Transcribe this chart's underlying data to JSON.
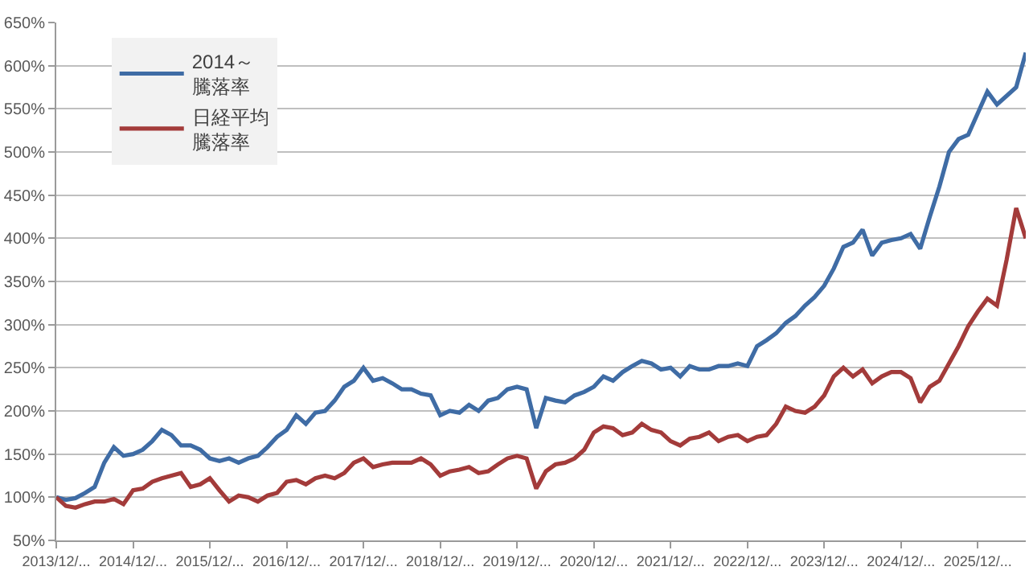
{
  "chart_data": {
    "type": "line",
    "categories": [
      "2013/12/...",
      null,
      null,
      null,
      null,
      null,
      null,
      null,
      "2014/12/...",
      null,
      null,
      null,
      null,
      null,
      null,
      null,
      "2015/12/...",
      null,
      null,
      null,
      null,
      null,
      null,
      null,
      "2016/12/...",
      null,
      null,
      null,
      null,
      null,
      null,
      null,
      "2017/12/...",
      null,
      null,
      null,
      null,
      null,
      null,
      null,
      "2018/12/...",
      null,
      null,
      null,
      null,
      null,
      null,
      null,
      "2019/12/...",
      null,
      null,
      null,
      null,
      null,
      null,
      null,
      "2020/12/...",
      null,
      null,
      null,
      null,
      null,
      null,
      null,
      "2021/12/...",
      null,
      null,
      null,
      null,
      null,
      null,
      null,
      "2022/12/...",
      null,
      null,
      null,
      null,
      null,
      null,
      null,
      "2023/12/...",
      null,
      null,
      null,
      null,
      null,
      null,
      null,
      "2024/12/...",
      null,
      null,
      null,
      null,
      null,
      null,
      null,
      "2025/12/...",
      null,
      null,
      null,
      null,
      null
    ],
    "series": [
      {
        "name": "2014～騰落率",
        "color": "#3f6ca5",
        "values": [
          100,
          97,
          99,
          105,
          112,
          140,
          158,
          148,
          150,
          155,
          165,
          178,
          172,
          160,
          160,
          155,
          145,
          142,
          145,
          140,
          145,
          148,
          158,
          170,
          178,
          195,
          185,
          198,
          200,
          212,
          228,
          235,
          250,
          235,
          238,
          232,
          225,
          225,
          220,
          218,
          195,
          200,
          198,
          207,
          200,
          212,
          215,
          225,
          228,
          225,
          180,
          215,
          212,
          210,
          218,
          222,
          228,
          240,
          235,
          245,
          252,
          258,
          255,
          248,
          250,
          240,
          252,
          248,
          248,
          252,
          252,
          255,
          252,
          275,
          282,
          290,
          302,
          310,
          322,
          332,
          345,
          365,
          390,
          395,
          410,
          380,
          395,
          398,
          400,
          405,
          388,
          425,
          460,
          500,
          515,
          520,
          545,
          570,
          555,
          565,
          575,
          615
        ]
      },
      {
        "name": "日経平均騰落率",
        "color": "#a33b3a",
        "values": [
          100,
          90,
          88,
          92,
          95,
          95,
          98,
          92,
          108,
          110,
          118,
          122,
          125,
          128,
          112,
          115,
          122,
          108,
          95,
          102,
          100,
          95,
          102,
          105,
          118,
          120,
          115,
          122,
          125,
          122,
          128,
          140,
          145,
          135,
          138,
          140,
          140,
          140,
          145,
          138,
          125,
          130,
          132,
          135,
          128,
          130,
          138,
          145,
          148,
          145,
          110,
          130,
          138,
          140,
          145,
          155,
          175,
          182,
          180,
          172,
          175,
          185,
          178,
          175,
          165,
          160,
          168,
          170,
          175,
          165,
          170,
          172,
          165,
          170,
          172,
          185,
          205,
          200,
          198,
          205,
          218,
          240,
          250,
          240,
          248,
          232,
          240,
          245,
          245,
          238,
          210,
          228,
          235,
          255,
          275,
          298,
          315,
          330,
          322,
          375,
          435,
          400
        ]
      }
    ],
    "ylim": [
      50,
      650
    ],
    "yticks": [
      {
        "value": 50,
        "label": "50%"
      },
      {
        "value": 100,
        "label": "100%"
      },
      {
        "value": 150,
        "label": "150%"
      },
      {
        "value": 200,
        "label": "200%"
      },
      {
        "value": 250,
        "label": "250%"
      },
      {
        "value": 300,
        "label": "300%"
      },
      {
        "value": 350,
        "label": "350%"
      },
      {
        "value": 400,
        "label": "400%"
      },
      {
        "value": 450,
        "label": "450%"
      },
      {
        "value": 500,
        "label": "500%"
      },
      {
        "value": 550,
        "label": "550%"
      },
      {
        "value": 600,
        "label": "600%"
      },
      {
        "value": 650,
        "label": "650%"
      }
    ],
    "grid": "y",
    "legend": "top left",
    "marker": "none",
    "line_style": "solid"
  }
}
